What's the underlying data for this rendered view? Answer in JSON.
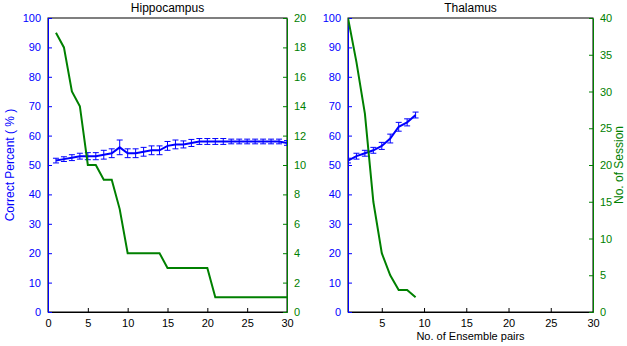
{
  "chart_data": [
    {
      "type": "line",
      "title": "Hippocampus",
      "y_label": "Correct Percent ( % )",
      "x": [
        1,
        2,
        3,
        4,
        5,
        6,
        7,
        8,
        9,
        10,
        11,
        12,
        13,
        14,
        15,
        16,
        17,
        18,
        19,
        20,
        21,
        22,
        23,
        24,
        25,
        26,
        27,
        28,
        29,
        30
      ],
      "xlim": [
        0,
        30
      ],
      "xticks": [
        0,
        5,
        10,
        15,
        20,
        25,
        30
      ],
      "ylim": [
        0,
        100
      ],
      "yticks": [
        0,
        10,
        20,
        30,
        40,
        50,
        60,
        70,
        80,
        90,
        100
      ],
      "y2lim": [
        0,
        20
      ],
      "y2ticks": [
        0,
        2,
        4,
        6,
        8,
        10,
        12,
        14,
        16,
        18,
        20
      ],
      "series": [
        {
          "color": "#0000ff",
          "marker": "none",
          "line_style": "solid",
          "values": [
            51.5,
            52,
            52.5,
            53,
            53,
            53,
            53.5,
            54,
            56,
            54,
            54,
            54.5,
            55,
            55,
            56.5,
            57,
            57,
            57.5,
            58,
            58,
            58,
            58,
            58,
            58,
            58,
            58,
            58,
            58,
            58,
            57.5
          ],
          "errors": [
            0.8,
            0.8,
            1,
            1,
            1.2,
            1.2,
            1.5,
            1.5,
            2.5,
            1.5,
            1.5,
            1.5,
            1.5,
            1.5,
            1.5,
            1.5,
            1.2,
            1.2,
            1,
            1,
            1,
            1,
            0.8,
            0.8,
            0.8,
            0.8,
            0.8,
            0.8,
            0.8,
            0.8
          ]
        },
        {
          "color": "#008000",
          "marker": "none",
          "line_style": "solid",
          "axis": "y2",
          "values": [
            19,
            18,
            15,
            14,
            10,
            10,
            9,
            9,
            7,
            4,
            4,
            4,
            4,
            4,
            3,
            3,
            3,
            3,
            3,
            3,
            1,
            1,
            1,
            1,
            1,
            1,
            1,
            1,
            1,
            1
          ]
        }
      ]
    },
    {
      "type": "line",
      "title": "Thalamus",
      "x_label": "No. of Ensemble pairs",
      "y2_label": "No. of Session",
      "x": [
        1,
        2,
        3,
        4,
        5,
        6,
        7,
        8,
        9
      ],
      "xlim": [
        1,
        30
      ],
      "xticks": [
        5,
        10,
        15,
        20,
        25,
        30
      ],
      "ylim": [
        0,
        100
      ],
      "yticks": [
        0,
        10,
        20,
        30,
        40,
        50,
        60,
        70,
        80,
        90,
        100
      ],
      "y2lim": [
        0,
        40
      ],
      "y2ticks": [
        0,
        5,
        10,
        15,
        20,
        25,
        30,
        35,
        40
      ],
      "series": [
        {
          "color": "#0000ff",
          "marker": "none",
          "line_style": "solid",
          "values": [
            51.5,
            53,
            54,
            55,
            56.5,
            59,
            63,
            64.5,
            67
          ],
          "errors": [
            0.8,
            1,
            1,
            1,
            1.2,
            1.5,
            1.5,
            1.2,
            1
          ]
        },
        {
          "color": "#008000",
          "marker": "none",
          "line_style": "solid",
          "axis": "y2",
          "values": [
            40,
            34,
            27,
            15,
            8,
            5,
            3,
            3,
            2
          ]
        }
      ]
    }
  ]
}
